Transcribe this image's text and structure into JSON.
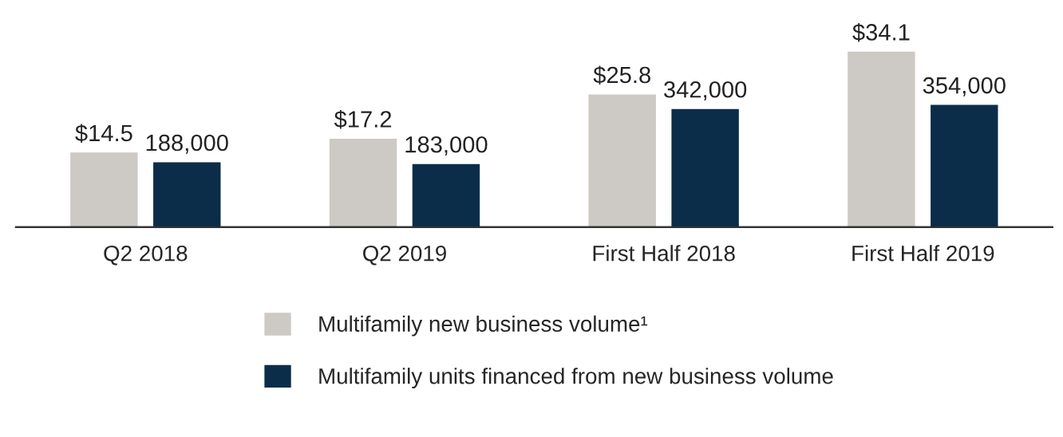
{
  "chart_data": {
    "type": "bar",
    "categories": [
      "Q2 2018",
      "Q2 2019",
      "First Half 2018",
      "First Half 2019"
    ],
    "series": [
      {
        "name": "Multifamily new business volume¹",
        "color": "#cdc9c4",
        "values": [
          14.5,
          17.2,
          25.8,
          34.1
        ],
        "value_labels": [
          "$14.5",
          "$17.2",
          "$25.8",
          "$34.1"
        ]
      },
      {
        "name": "Multifamily units financed from new business volume",
        "color": "#0b2d4a",
        "axis": "y2",
        "values": [
          188000,
          183000,
          342000,
          354000
        ],
        "value_labels": [
          "188,000",
          "183,000",
          "342,000",
          "354,000"
        ]
      }
    ],
    "legend": "bottom"
  }
}
